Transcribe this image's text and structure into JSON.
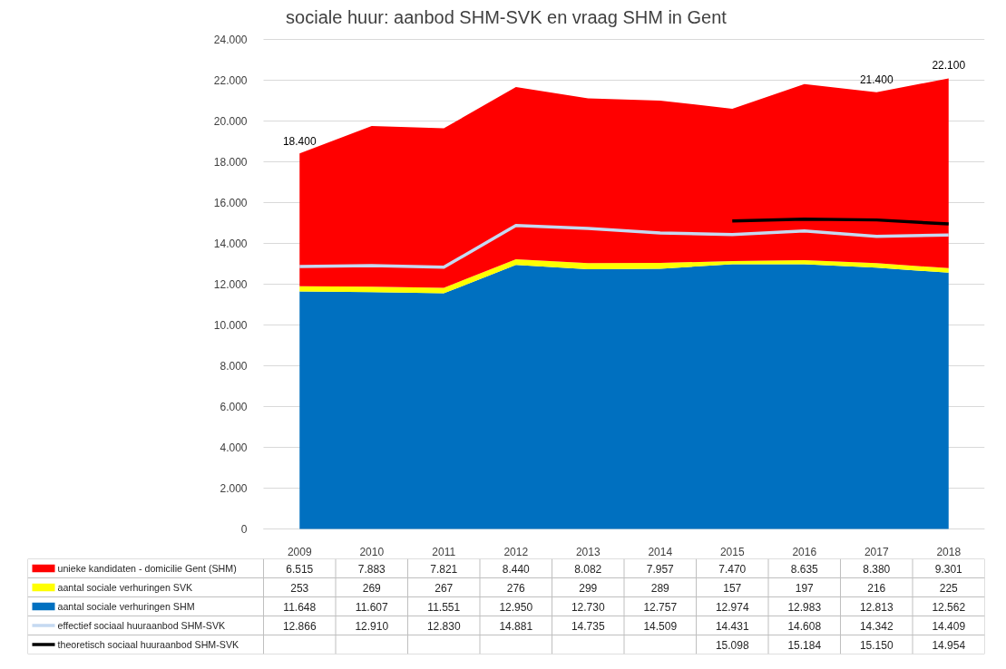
{
  "chart_data": {
    "type": "area",
    "stacked": true,
    "title": "sociale huur: aanbod SHM-SVK en vraag SHM in Gent",
    "categories": [
      "2009",
      "2010",
      "2011",
      "2012",
      "2013",
      "2014",
      "2015",
      "2016",
      "2017",
      "2018"
    ],
    "series": [
      {
        "name": "aantal sociale verhuringen SHM",
        "color": "#0070c0",
        "values": [
          11648,
          11607,
          11551,
          12950,
          12730,
          12757,
          12974,
          12983,
          12813,
          12562
        ],
        "value_labels": [
          "11.648",
          "11.607",
          "11.551",
          "12.950",
          "12.730",
          "12.757",
          "12.974",
          "12.983",
          "12.813",
          "12.562"
        ]
      },
      {
        "name": "aantal sociale verhuringen SVK",
        "color": "#ffff00",
        "values": [
          253,
          269,
          267,
          276,
          299,
          289,
          157,
          197,
          216,
          225
        ],
        "value_labels": [
          "253",
          "269",
          "267",
          "276",
          "299",
          "289",
          "157",
          "197",
          "216",
          "225"
        ]
      },
      {
        "name": "unieke kandidaten - domicilie Gent (SHM)",
        "color": "#ff0000",
        "values": [
          6515,
          7883,
          7821,
          8440,
          8082,
          7957,
          7470,
          8635,
          8380,
          9301
        ],
        "value_labels": [
          "6.515",
          "7.883",
          "7.821",
          "8.440",
          "8.082",
          "7.957",
          "7.470",
          "8.635",
          "8.380",
          "9.301"
        ]
      },
      {
        "name": "effectief sociaal huuraanbod SHM-SVK",
        "type": "line",
        "color": "#c5d9f1",
        "values": [
          12866,
          12910,
          12830,
          14881,
          14735,
          14509,
          14431,
          14608,
          14342,
          14409
        ],
        "value_labels": [
          "12.866",
          "12.910",
          "12.830",
          "14.881",
          "14.735",
          "14.509",
          "14.431",
          "14.608",
          "14.342",
          "14.409"
        ]
      },
      {
        "name": "theoretisch sociaal huuraanbod SHM-SVK",
        "type": "line",
        "color": "#000000",
        "values": [
          null,
          null,
          null,
          null,
          null,
          null,
          15098,
          15184,
          15150,
          14954
        ],
        "value_labels": [
          null,
          null,
          null,
          null,
          null,
          null,
          "15.098",
          "15.184",
          "15.150",
          "14.954"
        ]
      }
    ],
    "ylim": [
      0,
      24000
    ],
    "yticks": [
      {
        "value": 0,
        "label": "0"
      },
      {
        "value": 2000,
        "label": "2.000"
      },
      {
        "value": 4000,
        "label": "4.000"
      },
      {
        "value": 6000,
        "label": "6.000"
      },
      {
        "value": 8000,
        "label": "8.000"
      },
      {
        "value": 10000,
        "label": "10.000"
      },
      {
        "value": 12000,
        "label": "12.000"
      },
      {
        "value": 14000,
        "label": "14.000"
      },
      {
        "value": 16000,
        "label": "16.000"
      },
      {
        "value": 18000,
        "label": "18.000"
      },
      {
        "value": 20000,
        "label": "20.000"
      },
      {
        "value": 22000,
        "label": "22.000"
      },
      {
        "value": 24000,
        "label": "24.000"
      }
    ],
    "grid": "y",
    "legend": "bottom",
    "line_style": "solid",
    "annotations": [
      {
        "text": "18.400",
        "x": "2009",
        "y": 18400
      },
      {
        "text": "21.400",
        "x": "2017",
        "y": 21400
      },
      {
        "text": "22.100",
        "x": "2018",
        "y": 22100
      }
    ]
  }
}
